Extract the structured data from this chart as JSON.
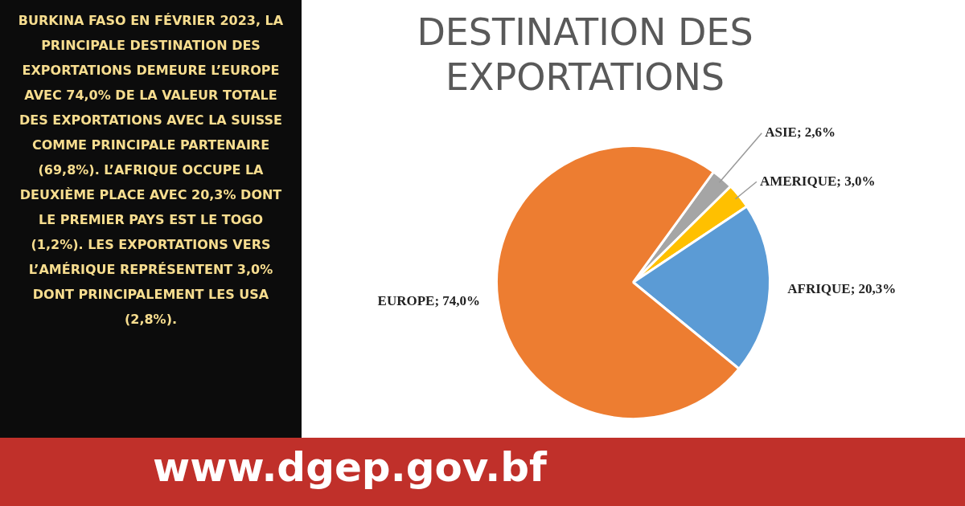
{
  "chart_data": {
    "type": "pie",
    "title": "DESTINATION DES EXPORTATIONS",
    "categories": [
      "ASIE",
      "AMERIQUE",
      "AFRIQUE",
      "EUROPE"
    ],
    "values": [
      2.6,
      3.0,
      20.3,
      74.0
    ],
    "value_labels": [
      "2,6%",
      "3,0%",
      "20,3%",
      "74,0%"
    ],
    "colors": [
      "#a5a5a5",
      "#ffc000",
      "#5b9bd5",
      "#ed7d31"
    ],
    "legend": false,
    "annotations": [
      "BURKINA FASO EN FÉVRIER 2023, LA PRINCIPALE DESTINATION DES EXPORTATIONS DEMEURE L’EUROPE AVEC 74,0% DE LA VALEUR TOTALE DES EXPORTATIONS AVEC LA SUISSE COMME PRINCIPALE PARTENAIRE (69,8%). L’AFRIQUE OCCUPE LA DEUXIÈME PLACE AVEC 20,3% DONT LE PREMIER PAYS EST LE TOGO (1,2%). LES EXPORTATIONS VERS L’AMÉRIQUE REPRÉSENTENT 3,0% DONT PRINCIPALEMENT LES USA (2,8%).",
      "www.dgep.gov.bf"
    ]
  }
}
